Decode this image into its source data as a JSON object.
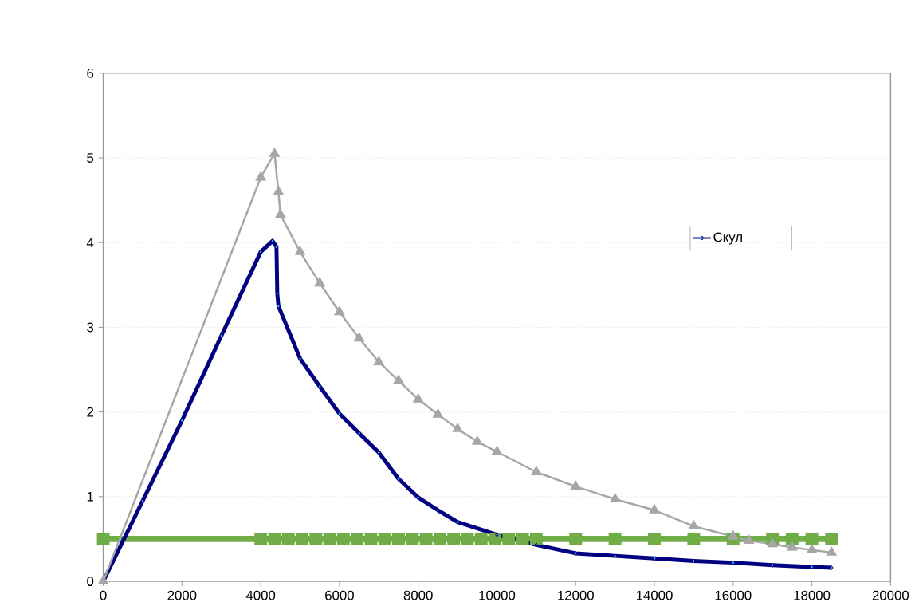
{
  "chart_data": {
    "type": "line",
    "xlim": [
      0,
      20000
    ],
    "xticks": [
      0,
      2000,
      4000,
      6000,
      8000,
      10000,
      12000,
      14000,
      16000,
      18000,
      20000
    ],
    "ylim": [
      0,
      6
    ],
    "yticks": [
      0,
      1,
      2,
      3,
      4,
      5,
      6
    ],
    "grid": "y",
    "legend": "right",
    "series": [
      {
        "name": "Скул",
        "color": "#000080",
        "marker": "diamond",
        "x": [
          0,
          1000,
          2000,
          3000,
          4000,
          4300,
          4400,
          4420,
          4450,
          5000,
          5500,
          6000,
          6500,
          7000,
          7500,
          8000,
          8500,
          9000,
          10000,
          11000,
          12000,
          13000,
          14000,
          15000,
          16000,
          17000,
          18000,
          18500
        ],
        "values": [
          0,
          0.95,
          1.9,
          2.9,
          3.89,
          4.02,
          3.95,
          3.4,
          3.25,
          2.63,
          2.3,
          1.98,
          1.75,
          1.52,
          1.21,
          0.99,
          0.84,
          0.7,
          0.55,
          0.43,
          0.33,
          0.3,
          0.27,
          0.24,
          0.22,
          0.19,
          0.17,
          0.16
        ]
      },
      {
        "color": "#a6a6a6",
        "marker": "triangle",
        "x": [
          0,
          4000,
          4350,
          4450,
          4500,
          5000,
          5500,
          6000,
          6500,
          7000,
          7500,
          8000,
          8500,
          9000,
          9500,
          10000,
          11000,
          12000,
          13000,
          14000,
          15000,
          16000,
          16400,
          17000,
          17500,
          18000,
          18500
        ],
        "values": [
          0,
          4.77,
          5.05,
          4.6,
          4.33,
          3.89,
          3.52,
          3.18,
          2.87,
          2.59,
          2.37,
          2.15,
          1.97,
          1.8,
          1.65,
          1.53,
          1.29,
          1.12,
          0.97,
          0.84,
          0.65,
          0.53,
          0.48,
          0.44,
          0.4,
          0.37,
          0.34
        ]
      },
      {
        "color": "#70ad47",
        "marker": "square",
        "x": [
          0,
          4000,
          4350,
          4700,
          5050,
          5400,
          5750,
          6100,
          6450,
          6800,
          7150,
          7500,
          7850,
          8200,
          8550,
          8900,
          9250,
          9600,
          9950,
          10300,
          10650,
          11000,
          12000,
          13000,
          14000,
          15000,
          16000,
          17000,
          17500,
          18000,
          18500
        ],
        "values": [
          0.5,
          0.5,
          0.5,
          0.5,
          0.5,
          0.5,
          0.5,
          0.5,
          0.5,
          0.5,
          0.5,
          0.5,
          0.5,
          0.5,
          0.5,
          0.5,
          0.5,
          0.5,
          0.5,
          0.5,
          0.5,
          0.5,
          0.5,
          0.5,
          0.5,
          0.5,
          0.5,
          0.5,
          0.5,
          0.5,
          0.5
        ]
      }
    ]
  }
}
